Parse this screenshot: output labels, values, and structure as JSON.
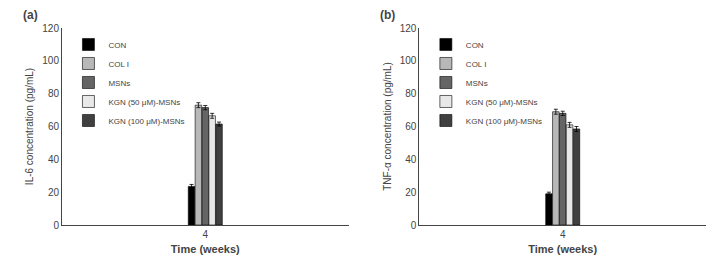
{
  "chart_data": [
    {
      "type": "bar",
      "title": "(a)",
      "xlabel": "Time (weeks)",
      "ylabel": "IL-6 concentration (pg/mL)",
      "categories": [
        "4"
      ],
      "series": [
        {
          "name": "CON",
          "color": "#000000",
          "values": [
            23.5
          ],
          "errors": [
            1.2
          ]
        },
        {
          "name": "COL I",
          "color": "#b8b8b8",
          "values": [
            73.0
          ],
          "errors": [
            1.5
          ]
        },
        {
          "name": "MSNs",
          "color": "#656565",
          "values": [
            71.5
          ],
          "errors": [
            1.3
          ]
        },
        {
          "name": "KGN (50 μM)-MSNs",
          "color": "#e8e8e8",
          "values": [
            66.5
          ],
          "errors": [
            1.5
          ]
        },
        {
          "name": "KGN (100 μM)-MSNs",
          "color": "#404040",
          "values": [
            61.5
          ],
          "errors": [
            1.2
          ]
        }
      ],
      "ylim": [
        0,
        120
      ],
      "yticks": [
        0,
        20,
        40,
        60,
        80,
        100,
        120
      ],
      "grid": false,
      "legend": "upper left"
    },
    {
      "type": "bar",
      "title": "(b)",
      "xlabel": "Time (weeks)",
      "ylabel": "TNF-α concentration (pg/mL)",
      "categories": [
        "4"
      ],
      "series": [
        {
          "name": "CON",
          "color": "#000000",
          "values": [
            19.0
          ],
          "errors": [
            1.0
          ]
        },
        {
          "name": "COL I",
          "color": "#b8b8b8",
          "values": [
            69.0
          ],
          "errors": [
            1.5
          ]
        },
        {
          "name": "MSNs",
          "color": "#656565",
          "values": [
            68.0
          ],
          "errors": [
            1.3
          ]
        },
        {
          "name": "KGN (50 μM)-MSNs",
          "color": "#e8e8e8",
          "values": [
            61.0
          ],
          "errors": [
            1.5
          ]
        },
        {
          "name": "KGN (100 μM)-MSNs",
          "color": "#404040",
          "values": [
            58.5
          ],
          "errors": [
            1.5
          ]
        }
      ],
      "ylim": [
        0,
        120
      ],
      "yticks": [
        0,
        20,
        40,
        60,
        80,
        100,
        120
      ],
      "grid": false,
      "legend": "upper left"
    }
  ]
}
